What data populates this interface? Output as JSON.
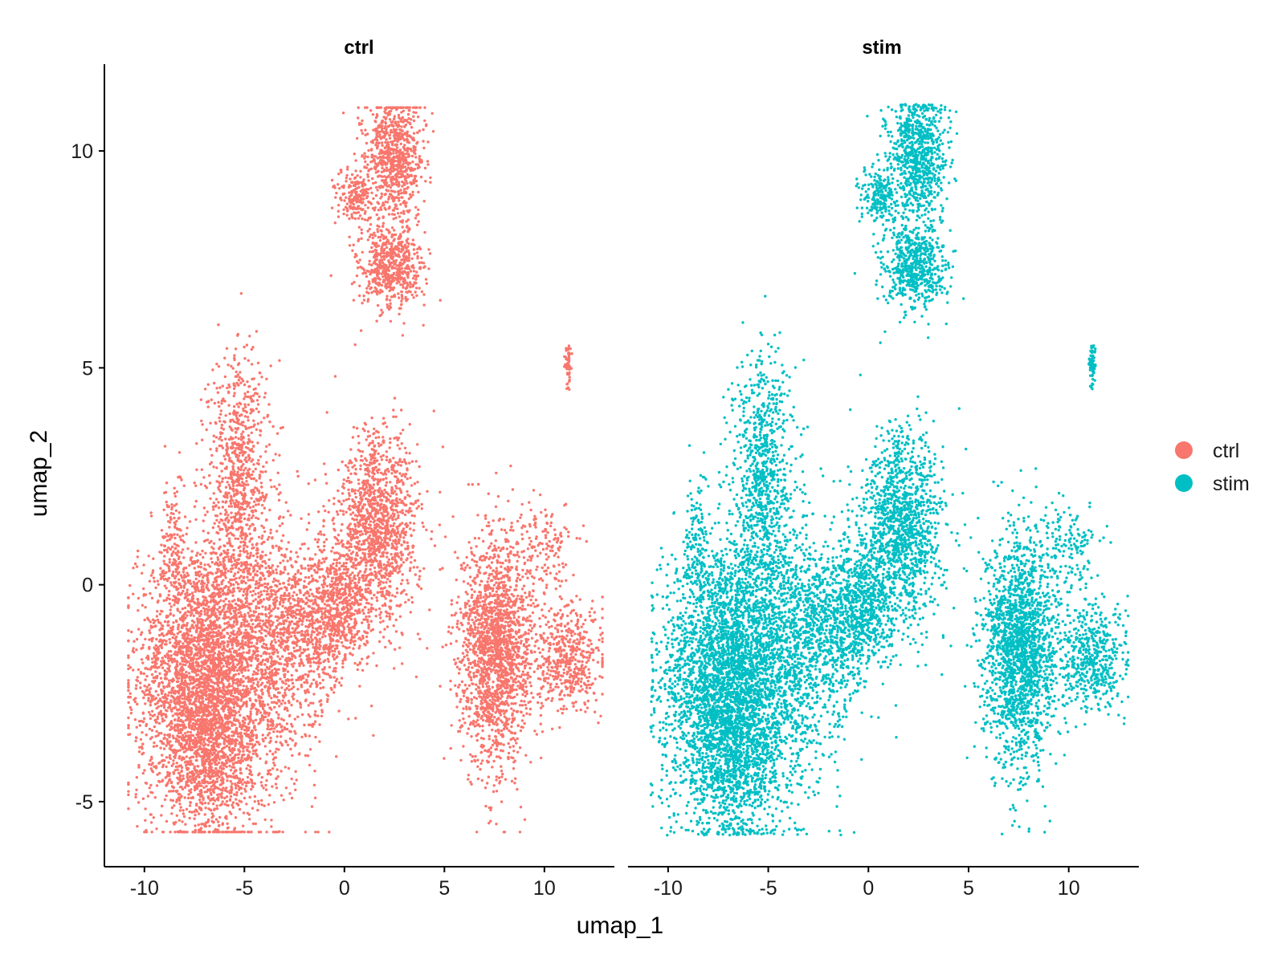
{
  "chart_data": {
    "type": "scatter",
    "xlabel": "umap_1",
    "ylabel": "umap_2",
    "xlim": [
      -12,
      13.5
    ],
    "ylim": [
      -6.5,
      12
    ],
    "x_ticks": [
      -10,
      -5,
      0,
      5,
      10
    ],
    "y_ticks": [
      -5,
      0,
      5,
      10
    ],
    "x_tick_labels": [
      "-10",
      "-5",
      "0",
      "5",
      "10"
    ],
    "y_tick_labels": [
      "-5",
      "0",
      "5",
      "10"
    ],
    "legend": {
      "position": "right",
      "entries": [
        {
          "label": "ctrl",
          "color": "#F8766D"
        },
        {
          "label": "stim",
          "color": "#00BFC4"
        }
      ]
    },
    "facets": [
      {
        "title": "ctrl",
        "color": "#F8766D"
      },
      {
        "title": "stim",
        "color": "#00BFC4"
      }
    ],
    "clusters": [
      {
        "name": "main-bottom-left",
        "cx": -7.3,
        "cy": -2.0,
        "sx": 1.5,
        "sy": 1.5,
        "n": 2600
      },
      {
        "name": "main-bottom-lower",
        "cx": -6.8,
        "cy": -4.0,
        "sx": 1.3,
        "sy": 0.9,
        "n": 900
      },
      {
        "name": "main-middle",
        "cx": -4.5,
        "cy": -1.8,
        "sx": 1.6,
        "sy": 1.6,
        "n": 1500
      },
      {
        "name": "arm-upper",
        "cx": -5.3,
        "cy": 2.6,
        "sx": 0.75,
        "sy": 1.4,
        "n": 800
      },
      {
        "name": "arm-left",
        "cx": -8.6,
        "cy": 0.9,
        "sx": 0.25,
        "sy": 0.9,
        "n": 120
      },
      {
        "name": "bridge",
        "cx": -1.8,
        "cy": -0.9,
        "sx": 1.2,
        "sy": 0.9,
        "n": 700
      },
      {
        "name": "neck",
        "cx": -0.2,
        "cy": -0.4,
        "sx": 0.7,
        "sy": 0.7,
        "n": 500
      },
      {
        "name": "upper-right-lobe",
        "cx": 1.7,
        "cy": 1.3,
        "sx": 1.0,
        "sy": 1.1,
        "n": 1300
      },
      {
        "name": "right-cluster",
        "cx": 7.6,
        "cy": -1.5,
        "sx": 0.9,
        "sy": 1.3,
        "n": 1900
      },
      {
        "name": "right-cluster-wing",
        "cx": 11.2,
        "cy": -1.7,
        "sx": 0.9,
        "sy": 0.6,
        "n": 500
      },
      {
        "name": "right-spike",
        "cx": 10.0,
        "cy": 0.8,
        "sx": 0.7,
        "sy": 0.5,
        "n": 150
      },
      {
        "name": "top-cluster-upper",
        "cx": 2.5,
        "cy": 9.9,
        "sx": 0.7,
        "sy": 0.7,
        "n": 800
      },
      {
        "name": "top-cluster-lower",
        "cx": 2.3,
        "cy": 7.3,
        "sx": 0.8,
        "sy": 0.5,
        "n": 600
      },
      {
        "name": "top-cluster-arm",
        "cx": 0.6,
        "cy": 8.9,
        "sx": 0.5,
        "sy": 0.35,
        "n": 200
      },
      {
        "name": "top-small-island",
        "cx": 11.2,
        "cy": 5.0,
        "sx": 0.08,
        "sy": 0.25,
        "n": 60
      }
    ]
  }
}
